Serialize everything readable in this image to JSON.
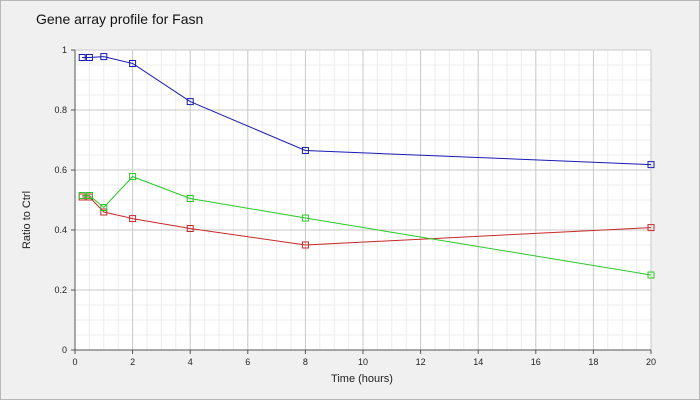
{
  "chart_data": {
    "type": "line",
    "title": "Gene array profile for Fasn",
    "xlabel": "Time (hours)",
    "ylabel": "Ratio to Ctrl",
    "xlim": [
      0,
      20
    ],
    "ylim": [
      0,
      1
    ],
    "x_ticks": [
      0,
      2,
      4,
      6,
      8,
      10,
      12,
      14,
      16,
      18,
      20
    ],
    "y_ticks": [
      0,
      0.2,
      0.4,
      0.6,
      0.8,
      1
    ],
    "grid": true,
    "marker": "square",
    "series": [
      {
        "color": "#1a1ab4",
        "x": [
          0.25,
          0.5,
          1,
          2,
          4,
          8,
          20
        ],
        "y": [
          0.975,
          0.975,
          0.978,
          0.955,
          0.828,
          0.665,
          0.618
        ]
      },
      {
        "color": "#c82828",
        "x": [
          0.25,
          0.5,
          1,
          2,
          4,
          8,
          20
        ],
        "y": [
          0.51,
          0.51,
          0.46,
          0.438,
          0.405,
          0.35,
          0.408
        ]
      },
      {
        "color": "#28c828",
        "x": [
          0.25,
          0.5,
          1,
          2,
          4,
          8,
          20
        ],
        "y": [
          0.515,
          0.515,
          0.475,
          0.578,
          0.505,
          0.44,
          0.25
        ]
      }
    ]
  }
}
